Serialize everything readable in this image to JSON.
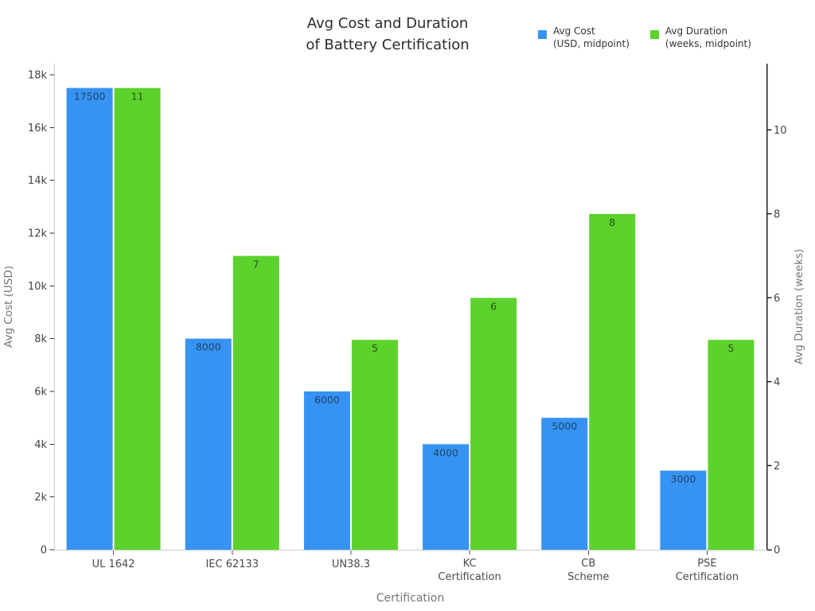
{
  "title": {
    "text": "Avg Cost and Duration of Battery Certification",
    "lines": [
      "Avg Cost and Duration",
      "of Battery Certification"
    ]
  },
  "legend": {
    "position": "top-right",
    "items": [
      {
        "label_lines": [
          "Avg Cost",
          "(USD, midpoint)"
        ],
        "color": "#3793f3"
      },
      {
        "label_lines": [
          "Avg Duration",
          "(weeks, midpoint)"
        ],
        "color": "#5cd22c"
      }
    ]
  },
  "chart_data": {
    "type": "bar",
    "categories": [
      "UL 1642",
      "IEC 62133",
      "UN38.3",
      "KC Certification",
      "CB Scheme",
      "PSE Certification"
    ],
    "category_label_lines": [
      [
        "UL 1642"
      ],
      [
        "IEC 62133"
      ],
      [
        "UN38.3"
      ],
      [
        "KC",
        "Certification"
      ],
      [
        "CB",
        "Scheme"
      ],
      [
        "PSE",
        "Certification"
      ]
    ],
    "series": [
      {
        "key": "avg-cost",
        "name": "Avg Cost (USD, midpoint)",
        "axis": "left",
        "color": "#3793f3",
        "label_color": "#1d4666",
        "values": [
          17500,
          8000,
          6000,
          4000,
          5000,
          3000
        ]
      },
      {
        "key": "avg-duration",
        "name": "Avg Duration (weeks, midpoint)",
        "axis": "right",
        "color": "#5cd22c",
        "label_color": "#2c5212",
        "values": [
          11,
          7,
          5,
          6,
          8,
          5
        ]
      }
    ],
    "title": "Avg Cost and Duration of Battery Certification",
    "xlabel": "Certification",
    "ylabel_left": "Avg Cost (USD)",
    "ylabel_right": "Avg Duration (weeks)",
    "ylim_left": [
      0,
      18421
    ],
    "ylim_right": [
      0,
      11.58
    ],
    "yticks_left": {
      "values": [
        0,
        2000,
        4000,
        6000,
        8000,
        10000,
        12000,
        14000,
        16000,
        18000
      ],
      "labels": [
        "0",
        "2k",
        "4k",
        "6k",
        "8k",
        "10k",
        "12k",
        "14k",
        "16k",
        "18k"
      ]
    },
    "yticks_right": {
      "values": [
        0,
        2,
        4,
        6,
        8,
        10
      ],
      "labels": [
        "0",
        "2",
        "4",
        "6",
        "8",
        "10"
      ]
    },
    "grid": false,
    "legend_position": "top-right"
  },
  "colors": {
    "background": "#ffffff",
    "bar_cost": "#3793f3",
    "bar_duration": "#5cd22c",
    "axis_line_light": "#cccccc",
    "axis_line_dark": "#222222",
    "tick_mark": "#333333",
    "tick_label": "#444444",
    "axis_title": "#757575",
    "title": "#2b2b2b"
  }
}
